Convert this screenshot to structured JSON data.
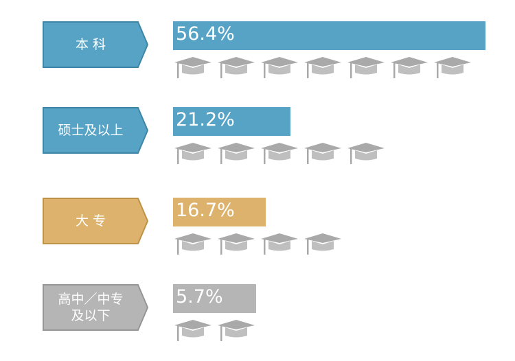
{
  "chart_data": {
    "type": "bar",
    "orientation": "horizontal",
    "categories": [
      "本 科",
      "硕士及以上",
      "大 专",
      "高中／中专\n及以下"
    ],
    "values": [
      56.4,
      21.2,
      16.7,
      5.7
    ],
    "value_labels": [
      "56.4%",
      "21.2%",
      "16.7%",
      "5.7%"
    ],
    "icon_counts": [
      7,
      5,
      4,
      2
    ],
    "icon": "graduation-cap-icon",
    "colors": [
      "#57A3C6",
      "#57A3C6",
      "#DDB26C",
      "#B5B5B5"
    ],
    "tag_border_colors": [
      "#3E85A6",
      "#3E85A6",
      "#BE9247",
      "#969696"
    ],
    "icon_color": "#A9A9A9",
    "grid": false,
    "xlim": [
      0,
      56.4
    ]
  }
}
